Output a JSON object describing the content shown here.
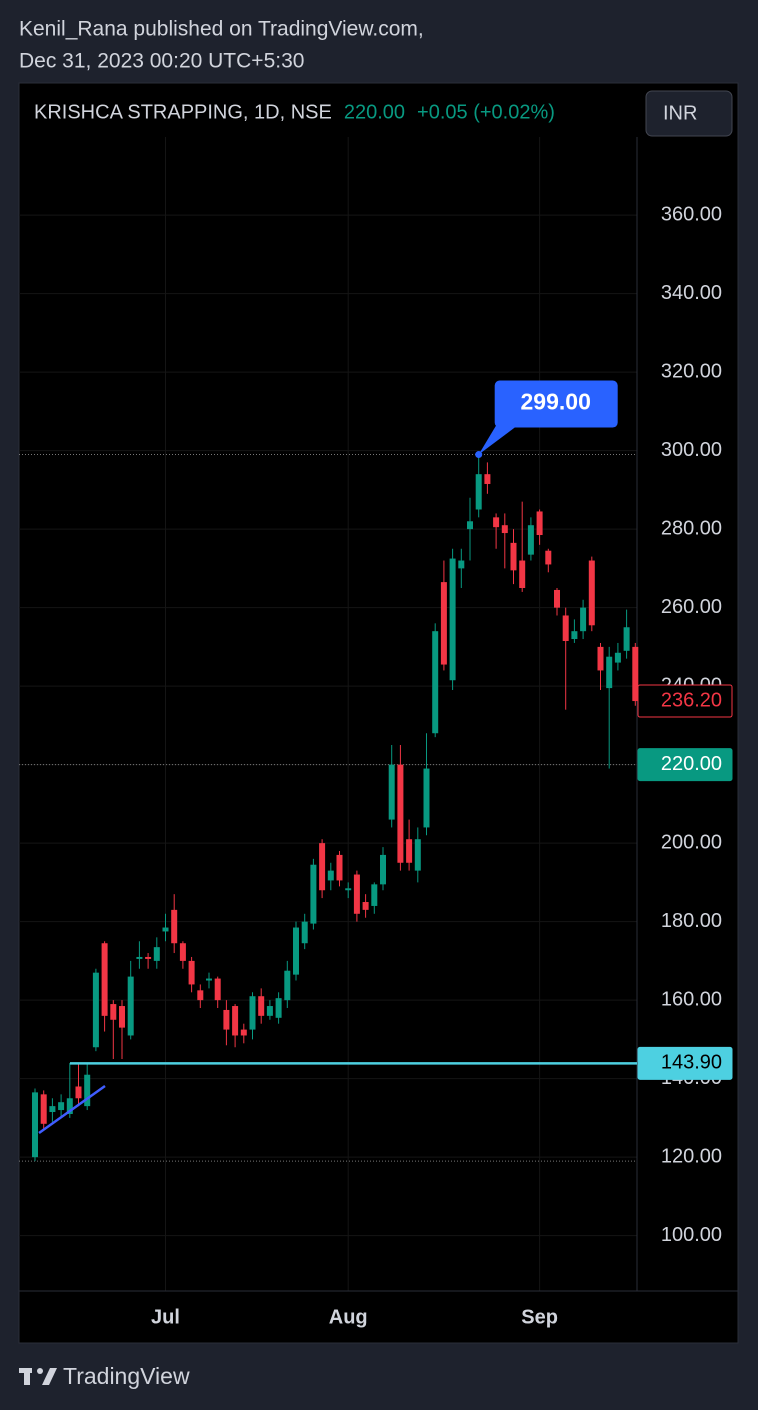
{
  "header": {
    "publisher": "Kenil_Rana published on TradingView.com,",
    "date": "Dec 31, 2023 00:20 UTC+5:30"
  },
  "footer": "TradingView",
  "chart_data": {
    "type": "candlestick",
    "title": "KRISHCA STRAPPING, 1D, NSE",
    "currency": "INR",
    "price_line": {
      "value": 220,
      "label": "220.00"
    },
    "change": "+0.05 (+0.02%)",
    "up_color": "#089981",
    "down_color": "#f23645",
    "categories": [
      null,
      null,
      null,
      null,
      null,
      null,
      null,
      null,
      null,
      null,
      null,
      null,
      null,
      null,
      null,
      "Jul",
      null,
      null,
      null,
      null,
      null,
      null,
      null,
      null,
      null,
      null,
      null,
      null,
      null,
      null,
      null,
      null,
      null,
      null,
      null,
      null,
      "Aug",
      null,
      null,
      null,
      null,
      null,
      null,
      null,
      null,
      null,
      null,
      null,
      null,
      null,
      null,
      null,
      null,
      null,
      null,
      null,
      null,
      null,
      "Sep",
      null,
      null,
      null,
      null,
      null,
      null,
      null,
      null,
      null,
      null,
      null
    ],
    "open": [
      120,
      136,
      131.5,
      132,
      131,
      138,
      133,
      148,
      174.5,
      159,
      158.5,
      151,
      170.5,
      171,
      170,
      177.5,
      183,
      174.5,
      170,
      162.5,
      165,
      165.5,
      157.5,
      158.5,
      152.5,
      152.5,
      161,
      156,
      155.5,
      160,
      166.5,
      174.5,
      179.5,
      200,
      190.5,
      197,
      188,
      192,
      185,
      184,
      189.5,
      206,
      220,
      201,
      193,
      204,
      228,
      266.5,
      241.5,
      270,
      280,
      285,
      294,
      283,
      281,
      276.5,
      272,
      273.5,
      284.5,
      274.5,
      264.5,
      258,
      252,
      254,
      272,
      250,
      239.5,
      246,
      249,
      250
    ],
    "high": [
      137.5,
      137,
      135,
      136,
      144,
      144,
      144,
      168,
      175,
      160,
      160,
      170,
      175,
      172,
      176,
      182,
      187,
      175,
      171,
      164,
      167,
      166,
      160,
      159,
      154,
      162,
      163,
      160,
      162,
      170,
      180,
      182,
      196,
      201,
      195,
      198,
      190,
      193,
      187,
      190,
      199,
      225,
      225,
      206,
      204,
      228,
      256,
      272,
      275,
      275,
      288,
      299,
      297,
      284,
      284,
      280,
      287,
      283,
      285,
      275,
      265,
      260,
      257,
      262,
      273,
      251,
      250,
      251,
      259.5,
      251
    ],
    "low": [
      119,
      127,
      129,
      130,
      130,
      133,
      132,
      147,
      152,
      145,
      145,
      150,
      168,
      168,
      168,
      175,
      172,
      168,
      162,
      158,
      163,
      158,
      148.5,
      148,
      149,
      150,
      154,
      155,
      154,
      158,
      165,
      173,
      178,
      186,
      188,
      189,
      186,
      180,
      181,
      182,
      188,
      204,
      193,
      193,
      190,
      202,
      227,
      244,
      239,
      265,
      272,
      283,
      289,
      275,
      270,
      266,
      264,
      272,
      276,
      269,
      258,
      234,
      251,
      252,
      254,
      239,
      219,
      244,
      247,
      235
    ],
    "close": [
      136.5,
      128.5,
      133,
      134,
      135,
      135,
      141,
      167,
      156,
      155,
      153,
      166,
      171,
      170.5,
      173.5,
      178.5,
      174.5,
      170,
      164,
      160,
      165.5,
      160,
      152.5,
      151,
      151,
      161,
      156,
      158.5,
      160.5,
      167.5,
      178.5,
      180,
      194.5,
      188,
      193,
      190.5,
      188.5,
      182,
      183,
      189.5,
      197,
      220,
      195,
      195,
      201,
      219,
      254,
      245.5,
      272.5,
      272,
      282,
      294,
      291.5,
      280.5,
      279,
      269.5,
      265,
      281,
      278.5,
      271,
      260,
      251.5,
      254,
      260,
      255.5,
      244,
      247.5,
      248.5,
      255,
      236.2
    ],
    "close_label": {
      "value": 236.2,
      "label": "236.20"
    },
    "high_marker": {
      "value": 299,
      "label": "299.00",
      "color": "#2962ff"
    },
    "horizontal_line": {
      "value": 143.9,
      "label": "143.90",
      "color": "#4dd0e1"
    },
    "ylim": [
      85.9,
      379.9
    ],
    "yticks": [
      {
        "value": 100,
        "label": "100.00"
      },
      {
        "value": 120,
        "label": "120.00"
      },
      {
        "value": 140,
        "label": "140.00"
      },
      {
        "value": 160,
        "label": "160.00"
      },
      {
        "value": 180,
        "label": "180.00"
      },
      {
        "value": 200,
        "label": "200.00"
      },
      {
        "value": 220,
        "label": "220.00"
      },
      {
        "value": 240,
        "label": "240.00"
      },
      {
        "value": 260,
        "label": "260.00"
      },
      {
        "value": 280,
        "label": "280.00"
      },
      {
        "value": 300,
        "label": "300.00"
      },
      {
        "value": 320,
        "label": "320.00"
      },
      {
        "value": 340,
        "label": "340.00"
      },
      {
        "value": 360,
        "label": "360.00"
      }
    ],
    "grid": true
  }
}
